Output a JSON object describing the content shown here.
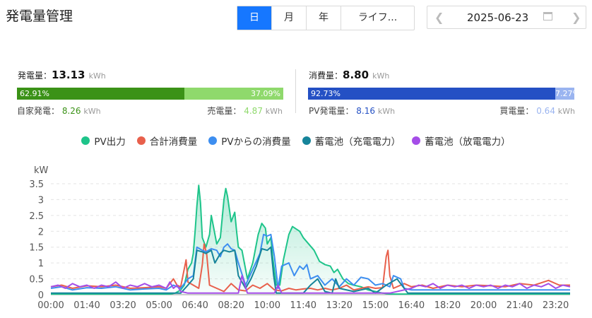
{
  "header": {
    "title": "発電量管理",
    "tabs": [
      {
        "label": "日",
        "active": true
      },
      {
        "label": "月",
        "active": false
      },
      {
        "label": "年",
        "active": false
      },
      {
        "label": "ライフ...",
        "active": false
      }
    ],
    "date": "2025-06-23",
    "prev_icon": "chevron-left-icon",
    "next_icon": "chevron-right-icon",
    "calendar_icon": "calendar-icon"
  },
  "generation": {
    "label": "発電量：",
    "value": "13.13",
    "unit": "kWh",
    "left_pct": "62.91%",
    "right_pct": "37.09%",
    "left_fraction": 0.6291,
    "left_color": "#3b9217",
    "right_color": "#8fd96c",
    "self_label": "自家発電：",
    "self_value": "8.26",
    "self_unit": "kWh",
    "sell_label": "売電量：",
    "sell_value": "4.87",
    "sell_unit": "kWh"
  },
  "consumption": {
    "label": "消費量：",
    "value": "8.80",
    "unit": "kWh",
    "left_pct": "92.73%",
    "right_pct": "7.27%",
    "left_fraction": 0.9273,
    "left_color": "#2450c4",
    "right_color": "#9ab4f0",
    "pv_label": "PV発電量：",
    "pv_value": "8.16",
    "pv_unit": "kWh",
    "buy_label": "買電量：",
    "buy_value": "0.64",
    "buy_unit": "kWh"
  },
  "chart_data": {
    "type": "line",
    "ylabel": "kW",
    "ylim": [
      0,
      3.5
    ],
    "yticks": [
      "0",
      "0.5",
      "1",
      "1.5",
      "2",
      "2.5",
      "3",
      "3.5"
    ],
    "xticks": [
      "00:00",
      "01:40",
      "03:20",
      "05:00",
      "06:40",
      "08:20",
      "10:00",
      "11:40",
      "13:20",
      "15:00",
      "16:40",
      "18:20",
      "20:00",
      "21:40",
      "23:20"
    ],
    "grid": true,
    "legend_position": "top",
    "series": [
      {
        "name": "PV出力",
        "color": "#1ec48a",
        "fill": true,
        "points": [
          [
            0,
            0.02
          ],
          [
            330,
            0.02
          ],
          [
            345,
            0.05
          ],
          [
            360,
            0.15
          ],
          [
            370,
            0.3
          ],
          [
            380,
            0.8
          ],
          [
            390,
            1.0
          ],
          [
            395,
            1.3
          ],
          [
            400,
            2.0
          ],
          [
            405,
            2.8
          ],
          [
            410,
            3.45
          ],
          [
            415,
            2.9
          ],
          [
            420,
            1.8
          ],
          [
            430,
            1.5
          ],
          [
            440,
            1.9
          ],
          [
            445,
            2.5
          ],
          [
            450,
            2.2
          ],
          [
            460,
            1.6
          ],
          [
            470,
            1.8
          ],
          [
            480,
            3.0
          ],
          [
            485,
            3.35
          ],
          [
            490,
            3.1
          ],
          [
            500,
            2.3
          ],
          [
            510,
            2.6
          ],
          [
            515,
            2.0
          ],
          [
            520,
            1.5
          ],
          [
            530,
            1.4
          ],
          [
            545,
            0.5
          ],
          [
            560,
            1.0
          ],
          [
            575,
            1.9
          ],
          [
            585,
            2.25
          ],
          [
            595,
            2.1
          ],
          [
            600,
            1.6
          ],
          [
            610,
            1.8
          ],
          [
            615,
            1.2
          ],
          [
            625,
            0.3
          ],
          [
            635,
            0.3
          ],
          [
            645,
            1.1
          ],
          [
            660,
            1.9
          ],
          [
            670,
            2.15
          ],
          [
            690,
            2.0
          ],
          [
            700,
            1.8
          ],
          [
            715,
            1.6
          ],
          [
            730,
            1.4
          ],
          [
            745,
            1.05
          ],
          [
            760,
            0.95
          ],
          [
            775,
            0.9
          ],
          [
            785,
            0.7
          ],
          [
            795,
            0.8
          ],
          [
            810,
            0.5
          ],
          [
            825,
            0.35
          ],
          [
            840,
            0.3
          ],
          [
            860,
            0.25
          ],
          [
            880,
            0.15
          ],
          [
            900,
            0.1
          ],
          [
            920,
            0.05
          ],
          [
            940,
            0.02
          ],
          [
            1440,
            0.02
          ]
        ]
      },
      {
        "name": "合計消費量",
        "color": "#e8604c",
        "fill": false,
        "points": [
          [
            0,
            0.25
          ],
          [
            30,
            0.3
          ],
          [
            60,
            0.2
          ],
          [
            100,
            0.28
          ],
          [
            140,
            0.25
          ],
          [
            180,
            0.3
          ],
          [
            220,
            0.2
          ],
          [
            260,
            0.22
          ],
          [
            300,
            0.25
          ],
          [
            320,
            0.2
          ],
          [
            340,
            0.5
          ],
          [
            350,
            0.3
          ],
          [
            360,
            0.25
          ],
          [
            375,
            1.1
          ],
          [
            380,
            0.4
          ],
          [
            395,
            0.3
          ],
          [
            410,
            0.2
          ],
          [
            420,
            0.95
          ],
          [
            425,
            1.6
          ],
          [
            432,
            1.3
          ],
          [
            440,
            0.3
          ],
          [
            460,
            0.2
          ],
          [
            480,
            0.1
          ],
          [
            500,
            0.35
          ],
          [
            520,
            0.15
          ],
          [
            540,
            0.12
          ],
          [
            560,
            0.3
          ],
          [
            580,
            0.2
          ],
          [
            600,
            0.35
          ],
          [
            620,
            0.15
          ],
          [
            640,
            0.12
          ],
          [
            660,
            0.2
          ],
          [
            680,
            0.15
          ],
          [
            700,
            0.18
          ],
          [
            720,
            0.2
          ],
          [
            740,
            0.15
          ],
          [
            760,
            0.2
          ],
          [
            780,
            0.15
          ],
          [
            800,
            0.2
          ],
          [
            820,
            0.3
          ],
          [
            840,
            0.15
          ],
          [
            880,
            0.25
          ],
          [
            900,
            0.2
          ],
          [
            920,
            0.22
          ],
          [
            930,
            1.2
          ],
          [
            935,
            1.4
          ],
          [
            940,
            0.6
          ],
          [
            950,
            0.2
          ],
          [
            980,
            0.35
          ],
          [
            1000,
            0.25
          ],
          [
            1030,
            0.3
          ],
          [
            1060,
            0.2
          ],
          [
            1100,
            0.3
          ],
          [
            1140,
            0.25
          ],
          [
            1180,
            0.3
          ],
          [
            1220,
            0.28
          ],
          [
            1260,
            0.25
          ],
          [
            1300,
            0.35
          ],
          [
            1340,
            0.3
          ],
          [
            1380,
            0.45
          ],
          [
            1410,
            0.3
          ],
          [
            1440,
            0.3
          ]
        ]
      },
      {
        "name": "PVからの消費量",
        "color": "#3d8ef0",
        "fill": false,
        "points": [
          [
            0,
            0.2
          ],
          [
            30,
            0.25
          ],
          [
            60,
            0.15
          ],
          [
            100,
            0.22
          ],
          [
            140,
            0.2
          ],
          [
            180,
            0.25
          ],
          [
            220,
            0.15
          ],
          [
            260,
            0.18
          ],
          [
            300,
            0.2
          ],
          [
            320,
            0.15
          ],
          [
            340,
            0.3
          ],
          [
            360,
            0.2
          ],
          [
            380,
            0.5
          ],
          [
            395,
            0.6
          ],
          [
            405,
            1.5
          ],
          [
            420,
            1.4
          ],
          [
            430,
            1.35
          ],
          [
            445,
            1.45
          ],
          [
            460,
            1.4
          ],
          [
            470,
            1.2
          ],
          [
            480,
            1.5
          ],
          [
            490,
            1.6
          ],
          [
            500,
            1.45
          ],
          [
            510,
            1.4
          ],
          [
            520,
            1.0
          ],
          [
            540,
            0.3
          ],
          [
            560,
            0.8
          ],
          [
            580,
            1.3
          ],
          [
            590,
            1.9
          ],
          [
            600,
            1.85
          ],
          [
            610,
            1.9
          ],
          [
            620,
            1.2
          ],
          [
            630,
            0.2
          ],
          [
            640,
            0.9
          ],
          [
            660,
            1.0
          ],
          [
            675,
            0.6
          ],
          [
            690,
            0.9
          ],
          [
            700,
            0.8
          ],
          [
            710,
            0.95
          ],
          [
            720,
            0.5
          ],
          [
            740,
            0.6
          ],
          [
            760,
            0.3
          ],
          [
            780,
            0.5
          ],
          [
            800,
            0.25
          ],
          [
            820,
            0.5
          ],
          [
            840,
            0.3
          ],
          [
            860,
            0.55
          ],
          [
            880,
            0.5
          ],
          [
            900,
            0.3
          ],
          [
            920,
            0.35
          ],
          [
            940,
            0.25
          ],
          [
            950,
            0.6
          ],
          [
            970,
            0.5
          ],
          [
            980,
            0.2
          ],
          [
            1000,
            0.15
          ],
          [
            1440,
            0.15
          ]
        ]
      },
      {
        "name": "蓄電池（充電電力）",
        "color": "#16849a",
        "fill": false,
        "points": [
          [
            0,
            0.05
          ],
          [
            360,
            0.05
          ],
          [
            380,
            0.3
          ],
          [
            395,
            0.5
          ],
          [
            405,
            1.4
          ],
          [
            420,
            1.35
          ],
          [
            430,
            1.3
          ],
          [
            445,
            1.4
          ],
          [
            455,
            1.0
          ],
          [
            470,
            1.3
          ],
          [
            480,
            1.4
          ],
          [
            495,
            1.35
          ],
          [
            510,
            1.4
          ],
          [
            520,
            0.6
          ],
          [
            540,
            0.2
          ],
          [
            555,
            0.5
          ],
          [
            570,
            0.9
          ],
          [
            585,
            1.45
          ],
          [
            600,
            1.4
          ],
          [
            610,
            1.5
          ],
          [
            618,
            0.6
          ],
          [
            625,
            0.05
          ],
          [
            700,
            0.05
          ],
          [
            720,
            0.3
          ],
          [
            740,
            0.5
          ],
          [
            760,
            0.1
          ],
          [
            780,
            0.05
          ],
          [
            790,
            0.5
          ],
          [
            800,
            0.2
          ],
          [
            840,
            0.1
          ],
          [
            880,
            0.2
          ],
          [
            900,
            0.05
          ],
          [
            930,
            0.3
          ],
          [
            960,
            0.5
          ],
          [
            990,
            0.05
          ],
          [
            1440,
            0.05
          ]
        ]
      },
      {
        "name": "蓄電池（放電電力）",
        "color": "#a54de8",
        "fill": false,
        "points": [
          [
            0,
            0.25
          ],
          [
            20,
            0.3
          ],
          [
            40,
            0.2
          ],
          [
            60,
            0.35
          ],
          [
            80,
            0.25
          ],
          [
            100,
            0.3
          ],
          [
            120,
            0.2
          ],
          [
            140,
            0.3
          ],
          [
            160,
            0.25
          ],
          [
            180,
            0.4
          ],
          [
            200,
            0.2
          ],
          [
            220,
            0.3
          ],
          [
            240,
            0.25
          ],
          [
            260,
            0.35
          ],
          [
            280,
            0.25
          ],
          [
            300,
            0.3
          ],
          [
            320,
            0.2
          ],
          [
            330,
            0.4
          ],
          [
            340,
            0.2
          ],
          [
            350,
            0.3
          ],
          [
            360,
            0.1
          ],
          [
            380,
            0.05
          ],
          [
            520,
            0.05
          ],
          [
            530,
            0.6
          ],
          [
            545,
            0.05
          ],
          [
            620,
            0.05
          ],
          [
            630,
            0.3
          ],
          [
            640,
            0.05
          ],
          [
            940,
            0.05
          ],
          [
            1000,
            0.2
          ],
          [
            1020,
            0.3
          ],
          [
            1040,
            0.25
          ],
          [
            1060,
            0.35
          ],
          [
            1080,
            0.2
          ],
          [
            1100,
            0.3
          ],
          [
            1120,
            0.25
          ],
          [
            1140,
            0.3
          ],
          [
            1160,
            0.2
          ],
          [
            1180,
            0.3
          ],
          [
            1200,
            0.25
          ],
          [
            1220,
            0.3
          ],
          [
            1240,
            0.2
          ],
          [
            1260,
            0.3
          ],
          [
            1280,
            0.25
          ],
          [
            1300,
            0.35
          ],
          [
            1320,
            0.2
          ],
          [
            1340,
            0.3
          ],
          [
            1360,
            0.25
          ],
          [
            1380,
            0.35
          ],
          [
            1400,
            0.2
          ],
          [
            1420,
            0.3
          ],
          [
            1440,
            0.25
          ]
        ]
      }
    ]
  }
}
